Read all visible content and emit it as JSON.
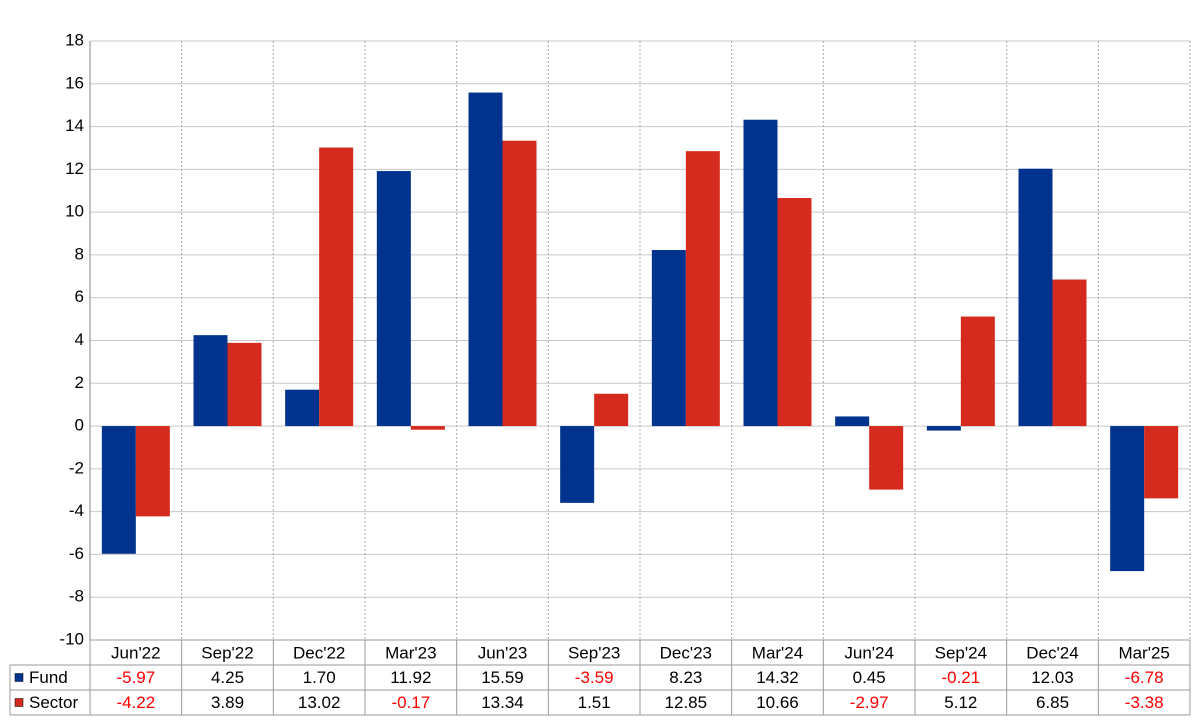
{
  "chart_data": {
    "type": "bar",
    "categories": [
      "Jun'22",
      "Sep'22",
      "Dec'22",
      "Mar'23",
      "Jun'23",
      "Sep'23",
      "Dec'23",
      "Mar'24",
      "Jun'24",
      "Sep'24",
      "Dec'24",
      "Mar'25"
    ],
    "series": [
      {
        "name": "Fund",
        "color": "#00338d",
        "values": [
          -5.97,
          4.25,
          1.7,
          11.92,
          15.59,
          -3.59,
          8.23,
          14.32,
          0.45,
          -0.21,
          12.03,
          -6.78
        ],
        "value_labels": [
          "-5.97",
          "4.25",
          "1.70",
          "11.92",
          "15.59",
          "-3.59",
          "8.23",
          "14.32",
          "0.45",
          "-0.21",
          "12.03",
          "-6.78"
        ]
      },
      {
        "name": "Sector",
        "color": "#d52b1e",
        "values": [
          -4.22,
          3.89,
          13.02,
          -0.17,
          13.34,
          1.51,
          12.85,
          10.66,
          -2.97,
          5.12,
          6.85,
          -3.38
        ],
        "value_labels": [
          "-4.22",
          "3.89",
          "13.02",
          "-0.17",
          "13.34",
          "1.51",
          "12.85",
          "10.66",
          "-2.97",
          "5.12",
          "6.85",
          "-3.38"
        ]
      }
    ],
    "ylim": [
      -10,
      18
    ],
    "yticks": [
      -10,
      -8,
      -6,
      -4,
      -2,
      0,
      2,
      4,
      6,
      8,
      10,
      12,
      14,
      16,
      18
    ],
    "grid": true,
    "negative_label_color": "#ff0000"
  }
}
